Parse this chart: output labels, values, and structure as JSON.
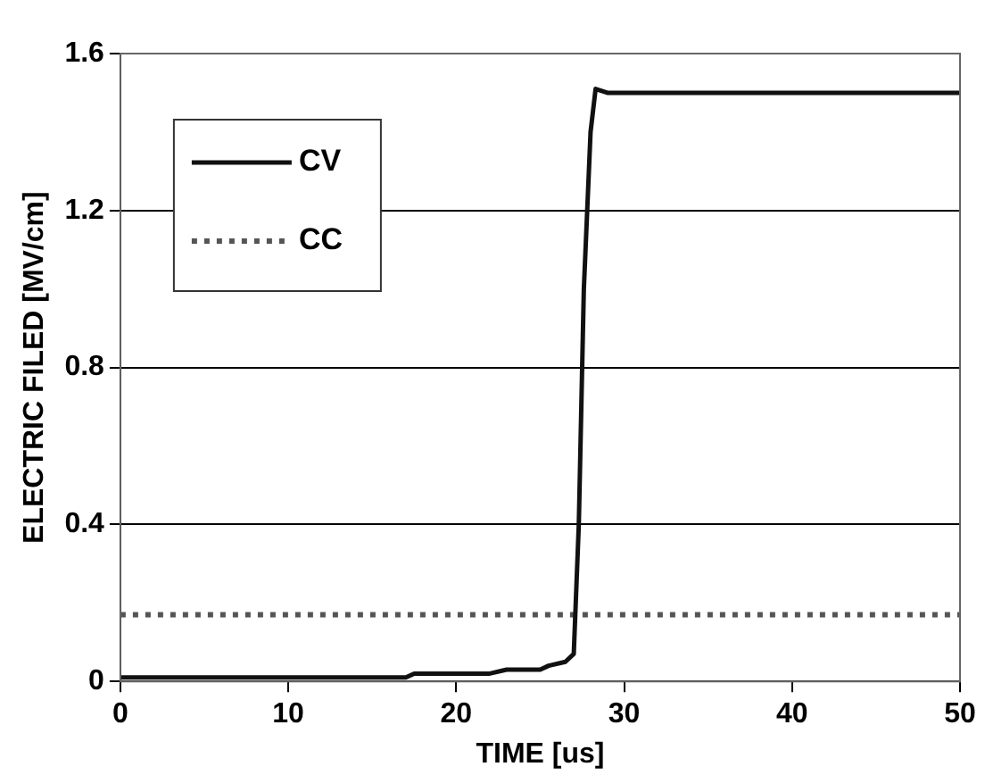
{
  "chart_data": {
    "type": "line",
    "xlabel": "TIME [us]",
    "ylabel": "ELECTRIC FILED [MV/cm]",
    "xlim": [
      0,
      50
    ],
    "xticks": [
      0,
      10,
      20,
      30,
      40,
      50
    ],
    "ylim": [
      0,
      1.6
    ],
    "yticks": [
      0,
      0.4,
      0.8,
      1.2,
      1.6
    ],
    "grid": "y",
    "legend": "top left",
    "marker": "none",
    "series": [
      {
        "name": "CV",
        "color": "#111111",
        "line_style": "solid",
        "x": [
          0,
          10,
          17,
          17.5,
          22,
          23,
          25,
          25.5,
          26.5,
          27,
          27.3,
          27.6,
          28,
          28.3,
          29,
          35,
          50
        ],
        "values": [
          0.01,
          0.01,
          0.01,
          0.02,
          0.02,
          0.03,
          0.03,
          0.04,
          0.05,
          0.07,
          0.4,
          1.0,
          1.4,
          1.51,
          1.5,
          1.5,
          1.5
        ]
      },
      {
        "name": "CC",
        "color": "#555555",
        "line_style": "dotted",
        "x": [
          0,
          50
        ],
        "values": [
          0.17,
          0.17
        ]
      }
    ]
  }
}
